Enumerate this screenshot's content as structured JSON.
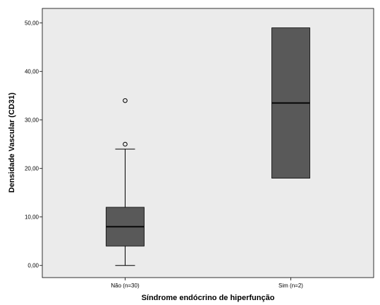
{
  "chart_data": {
    "type": "boxplot",
    "title": "",
    "xlabel": "Síndrome endócrino de hiperfunção",
    "ylabel": "Densidade Vascular (CD31)",
    "ylim": [
      -2.5,
      53
    ],
    "yticks": [
      0,
      10,
      20,
      30,
      40,
      50
    ],
    "ytick_labels": [
      "0,00",
      "10,00",
      "20,00",
      "30,00",
      "40,00",
      "50,00"
    ],
    "grid": false,
    "colors": {
      "plot_background": "#ebebeb",
      "box_fill": "#595959",
      "median_line": "#000000",
      "outlier_marker": "#000000"
    },
    "categories": [
      "Não (n=30)",
      "Sim (n=2)"
    ],
    "boxes": [
      {
        "category": "Não (n=30)",
        "whisker_low": 0,
        "q1": 4,
        "median": 8,
        "q3": 12,
        "whisker_high": 24,
        "outliers": [
          25,
          34
        ]
      },
      {
        "category": "Sim (n=2)",
        "whisker_low": 18,
        "q1": 18,
        "median": 33.5,
        "q3": 49,
        "whisker_high": 49,
        "outliers": []
      }
    ]
  }
}
